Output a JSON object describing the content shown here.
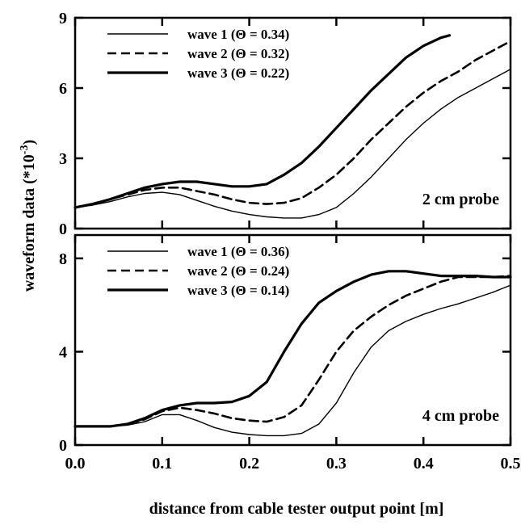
{
  "chart_data": [
    {
      "type": "line",
      "panel": "top",
      "annotation": "2 cm probe",
      "xlim": [
        0,
        0.5
      ],
      "ylim": [
        0,
        9
      ],
      "y_ticks": [
        0,
        3,
        6,
        9
      ],
      "y_tick_labels": [
        "0",
        "3",
        "6",
        "9"
      ],
      "grid": false,
      "legend_position": "top-left",
      "series": [
        {
          "name": "wave 1 (Θ = 0.34)",
          "style": "thin-solid",
          "x": [
            0,
            0.02,
            0.04,
            0.06,
            0.08,
            0.1,
            0.12,
            0.14,
            0.16,
            0.18,
            0.2,
            0.22,
            0.24,
            0.26,
            0.28,
            0.3,
            0.32,
            0.34,
            0.36,
            0.38,
            0.4,
            0.42,
            0.44,
            0.46,
            0.48,
            0.5
          ],
          "y": [
            0.9,
            1.0,
            1.15,
            1.35,
            1.5,
            1.55,
            1.45,
            1.2,
            0.95,
            0.75,
            0.6,
            0.5,
            0.45,
            0.45,
            0.6,
            0.9,
            1.5,
            2.2,
            3.0,
            3.8,
            4.5,
            5.1,
            5.6,
            6.0,
            6.4,
            6.8
          ]
        },
        {
          "name": "wave 2 (Θ = 0.32)",
          "style": "dashed",
          "x": [
            0,
            0.02,
            0.04,
            0.06,
            0.08,
            0.1,
            0.12,
            0.14,
            0.16,
            0.18,
            0.2,
            0.22,
            0.24,
            0.26,
            0.28,
            0.3,
            0.32,
            0.34,
            0.36,
            0.38,
            0.4,
            0.42,
            0.44,
            0.46,
            0.48,
            0.5
          ],
          "y": [
            0.9,
            1.05,
            1.25,
            1.45,
            1.65,
            1.75,
            1.75,
            1.6,
            1.45,
            1.25,
            1.1,
            1.05,
            1.1,
            1.3,
            1.75,
            2.3,
            3.0,
            3.8,
            4.5,
            5.2,
            5.8,
            6.3,
            6.7,
            7.2,
            7.6,
            8.0
          ]
        },
        {
          "name": "wave 3 (Θ = 0.22)",
          "style": "thick-solid",
          "x": [
            0,
            0.02,
            0.04,
            0.06,
            0.08,
            0.1,
            0.12,
            0.14,
            0.16,
            0.18,
            0.2,
            0.22,
            0.24,
            0.26,
            0.28,
            0.3,
            0.32,
            0.34,
            0.36,
            0.38,
            0.4,
            0.42,
            0.43
          ],
          "y": [
            0.9,
            1.05,
            1.25,
            1.5,
            1.75,
            1.9,
            2.0,
            2.0,
            1.9,
            1.8,
            1.8,
            1.9,
            2.3,
            2.8,
            3.5,
            4.3,
            5.1,
            5.9,
            6.6,
            7.3,
            7.8,
            8.15,
            8.25
          ]
        }
      ]
    },
    {
      "type": "line",
      "panel": "bottom",
      "annotation": "4 cm probe",
      "xlim": [
        0,
        0.5
      ],
      "ylim": [
        0,
        9
      ],
      "y_ticks": [
        0,
        4,
        8
      ],
      "y_tick_labels": [
        "0",
        "4",
        "8"
      ],
      "x_ticks": [
        0,
        0.1,
        0.2,
        0.3,
        0.4,
        0.5
      ],
      "x_tick_labels": [
        "0.0",
        "0.1",
        "0.2",
        "0.3",
        "0.4",
        "0.5"
      ],
      "grid": false,
      "legend_position": "top-left",
      "series": [
        {
          "name": "wave 1 (Θ = 0.36)",
          "style": "thin-solid",
          "x": [
            0,
            0.02,
            0.04,
            0.06,
            0.08,
            0.1,
            0.12,
            0.14,
            0.16,
            0.18,
            0.2,
            0.22,
            0.24,
            0.26,
            0.28,
            0.3,
            0.32,
            0.34,
            0.36,
            0.38,
            0.4,
            0.42,
            0.44,
            0.46,
            0.48,
            0.5
          ],
          "y": [
            0.8,
            0.8,
            0.8,
            0.85,
            1.0,
            1.3,
            1.3,
            1.05,
            0.75,
            0.55,
            0.45,
            0.4,
            0.4,
            0.5,
            0.9,
            1.8,
            3.1,
            4.2,
            4.9,
            5.3,
            5.6,
            5.85,
            6.05,
            6.3,
            6.55,
            6.85
          ]
        },
        {
          "name": "wave 2 (Θ = 0.24)",
          "style": "dashed",
          "x": [
            0,
            0.02,
            0.04,
            0.06,
            0.08,
            0.1,
            0.12,
            0.14,
            0.16,
            0.18,
            0.2,
            0.22,
            0.24,
            0.26,
            0.28,
            0.3,
            0.32,
            0.34,
            0.36,
            0.38,
            0.4,
            0.42,
            0.44,
            0.46,
            0.48,
            0.5
          ],
          "y": [
            0.8,
            0.8,
            0.8,
            0.9,
            1.1,
            1.45,
            1.6,
            1.5,
            1.35,
            1.15,
            1.05,
            1.0,
            1.2,
            1.7,
            2.8,
            4.0,
            4.9,
            5.5,
            6.0,
            6.4,
            6.7,
            7.0,
            7.2,
            7.2,
            7.2,
            7.25
          ]
        },
        {
          "name": "wave 3 (Θ = 0.14)",
          "style": "thick-solid",
          "x": [
            0,
            0.02,
            0.04,
            0.06,
            0.08,
            0.1,
            0.12,
            0.14,
            0.16,
            0.18,
            0.2,
            0.22,
            0.24,
            0.26,
            0.28,
            0.3,
            0.32,
            0.34,
            0.36,
            0.38,
            0.4,
            0.42,
            0.44,
            0.46,
            0.48,
            0.5
          ],
          "y": [
            0.8,
            0.8,
            0.8,
            0.9,
            1.15,
            1.5,
            1.7,
            1.8,
            1.8,
            1.85,
            2.1,
            2.7,
            4.0,
            5.2,
            6.1,
            6.6,
            7.0,
            7.3,
            7.45,
            7.45,
            7.35,
            7.25,
            7.25,
            7.25,
            7.2,
            7.2
          ]
        }
      ]
    }
  ],
  "ylabel_main": "waveform data (*10",
  "ylabel_exp": "-3",
  "ylabel_close": ")",
  "xlabel": "distance from cable tester output point [m]"
}
